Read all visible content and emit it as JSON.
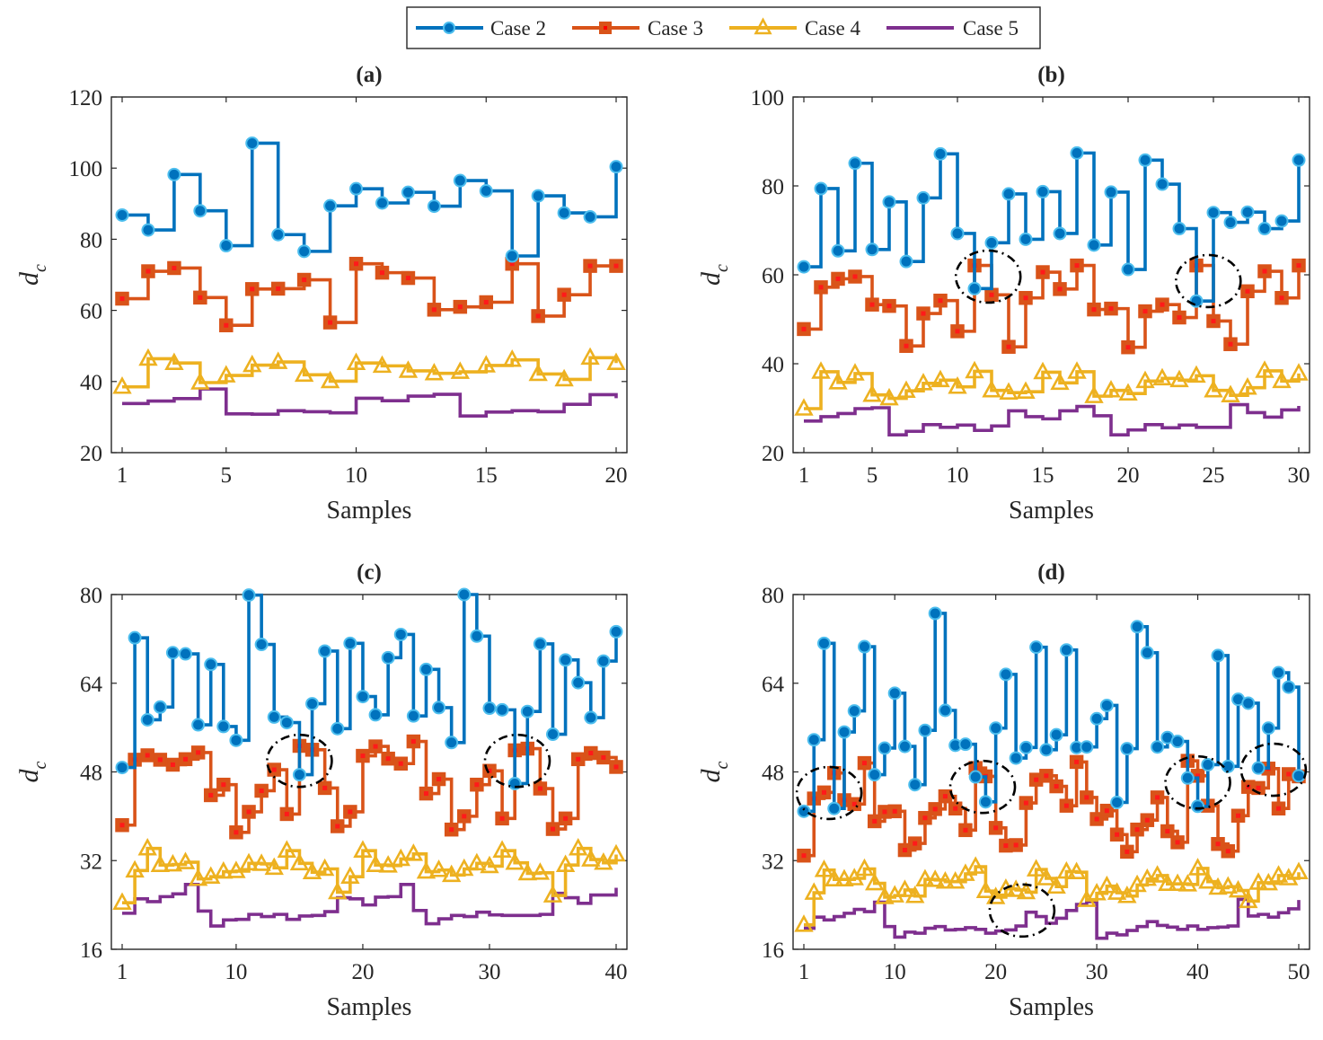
{
  "legend": [
    {
      "name": "Case 2",
      "color": "#0072BD",
      "marker": "circle"
    },
    {
      "name": "Case 3",
      "color": "#D95319",
      "marker": "square"
    },
    {
      "name": "Case 4",
      "color": "#EDB120",
      "marker": "triangle"
    },
    {
      "name": "Case 5",
      "color": "#7E2F8E",
      "marker": "none"
    }
  ],
  "chart_data": [
    {
      "type": "line",
      "title": "(a)",
      "xlabel": "Samples",
      "ylabel": "d",
      "ylabel_sub": "c",
      "xlim": [
        1,
        20
      ],
      "ylim": [
        20,
        120
      ],
      "xticks": [
        1,
        5,
        10,
        15,
        20
      ],
      "yticks": [
        20,
        40,
        60,
        80,
        100,
        120
      ],
      "series": [
        {
          "name": "Case 2",
          "values": [
            86.8,
            82.6,
            98.2,
            88.0,
            78.2,
            107.0,
            81.3,
            76.6,
            89.4,
            94.2,
            90.2,
            93.2,
            89.3,
            96.5,
            93.6,
            75.3,
            92.2,
            87.4,
            86.3,
            100.4
          ]
        },
        {
          "name": "Case 3",
          "values": [
            63.3,
            71.0,
            71.9,
            63.6,
            55.8,
            66.0,
            66.1,
            68.6,
            56.6,
            73.1,
            70.6,
            69.1,
            60.2,
            61.0,
            62.3,
            73.1,
            58.4,
            64.4,
            72.5,
            72.5
          ]
        },
        {
          "name": "Case 4",
          "values": [
            38.5,
            46.4,
            45.2,
            39.7,
            41.7,
            44.6,
            45.5,
            41.9,
            40.1,
            45.2,
            44.4,
            43.0,
            42.3,
            42.7,
            44.5,
            46.1,
            42.1,
            40.6,
            46.7,
            45.2
          ]
        },
        {
          "name": "Case 5",
          "values": [
            33.8,
            34.5,
            35.2,
            37.9,
            30.9,
            30.8,
            31.8,
            31.5,
            31.2,
            35.3,
            34.6,
            35.9,
            36.4,
            30.3,
            31.4,
            31.8,
            31.5,
            33.6,
            36.3,
            35.3
          ]
        }
      ],
      "annotations": []
    },
    {
      "type": "line",
      "title": "(b)",
      "xlabel": "Samples",
      "ylabel": "d",
      "ylabel_sub": "c",
      "xlim": [
        1,
        30
      ],
      "ylim": [
        20,
        100
      ],
      "xticks": [
        1,
        5,
        10,
        15,
        20,
        25,
        30
      ],
      "yticks": [
        20,
        40,
        60,
        80,
        100
      ],
      "series": [
        {
          "name": "Case 2",
          "values": [
            61.8,
            79.4,
            65.4,
            85.1,
            65.7,
            76.4,
            63.0,
            77.3,
            87.2,
            69.3,
            56.9,
            67.2,
            78.2,
            68.0,
            78.7,
            69.3,
            87.4,
            66.7,
            78.6,
            61.2,
            85.8,
            80.4,
            70.4,
            54.1,
            74.0,
            71.8,
            74.1,
            70.4,
            72.1,
            85.8
          ]
        },
        {
          "name": "Case 3",
          "values": [
            47.8,
            57.2,
            59.1,
            59.6,
            53.3,
            53.0,
            44.0,
            51.3,
            54.2,
            47.3,
            62.1,
            55.5,
            43.8,
            54.8,
            60.6,
            56.8,
            62.1,
            52.2,
            52.4,
            43.7,
            51.8,
            53.3,
            50.4,
            62.1,
            49.6,
            44.4,
            56.3,
            60.8,
            54.8,
            62.1
          ]
        },
        {
          "name": "Case 4",
          "values": [
            29.9,
            38.2,
            35.8,
            37.8,
            33.0,
            32.2,
            33.9,
            35.6,
            36.3,
            34.8,
            38.3,
            34.0,
            33.5,
            33.7,
            38.1,
            35.7,
            38.2,
            32.7,
            34.0,
            33.3,
            36.1,
            36.7,
            36.3,
            37.3,
            34.0,
            32.9,
            34.6,
            38.4,
            36.1,
            37.8
          ]
        },
        {
          "name": "Case 5",
          "values": [
            27.1,
            28.1,
            28.8,
            29.9,
            30.1,
            24.0,
            24.8,
            26.3,
            25.7,
            26.2,
            25.0,
            26.0,
            29.4,
            28.1,
            27.6,
            29.4,
            30.4,
            28.3,
            24.0,
            25.1,
            26.3,
            25.6,
            26.2,
            25.7,
            25.7,
            30.8,
            29.0,
            28.0,
            29.6,
            30.5
          ]
        }
      ],
      "annotations": [
        {
          "shape": "ellipse",
          "x": 11.8,
          "y": 59.6
        },
        {
          "shape": "ellipse",
          "x": 24.7,
          "y": 58.6
        }
      ]
    },
    {
      "type": "line",
      "title": "(c)",
      "xlabel": "Samples",
      "ylabel": "d",
      "ylabel_sub": "c",
      "xlim": [
        1,
        40
      ],
      "ylim": [
        16,
        80
      ],
      "xticks": [
        1,
        10,
        20,
        30,
        40
      ],
      "yticks": [
        16,
        32,
        48,
        64,
        80
      ],
      "series": [
        {
          "name": "Case 2",
          "values": [
            48.8,
            72.2,
            57.4,
            59.7,
            69.5,
            69.3,
            56.5,
            67.4,
            56.2,
            53.7,
            79.9,
            71.0,
            57.9,
            56.9,
            47.5,
            60.3,
            69.8,
            55.8,
            71.2,
            61.6,
            58.3,
            68.6,
            72.8,
            58.1,
            66.5,
            59.6,
            53.3,
            80.0,
            72.5,
            59.5,
            59.2,
            45.9,
            58.9,
            71.1,
            54.8,
            68.2,
            64.1,
            57.8,
            68.0,
            73.3
          ]
        },
        {
          "name": "Case 3",
          "values": [
            38.4,
            50.2,
            51.0,
            50.2,
            49.3,
            50.3,
            51.5,
            43.8,
            45.7,
            37.1,
            40.8,
            44.6,
            48.4,
            40.4,
            52.7,
            52.0,
            45.1,
            38.2,
            40.8,
            50.9,
            52.6,
            50.4,
            49.5,
            53.5,
            44.1,
            46.7,
            37.6,
            40.0,
            45.7,
            48.2,
            39.6,
            51.9,
            52.2,
            45.0,
            37.7,
            39.6,
            50.3,
            51.4,
            50.6,
            48.9
          ]
        },
        {
          "name": "Case 4",
          "values": [
            24.4,
            30.2,
            34.2,
            31.2,
            31.3,
            31.7,
            28.7,
            29.1,
            30.0,
            30.1,
            31.5,
            31.4,
            30.7,
            33.8,
            31.5,
            29.9,
            30.5,
            26.3,
            29.1,
            33.8,
            31.2,
            31.1,
            32.3,
            33.2,
            30.0,
            30.3,
            29.4,
            30.5,
            31.5,
            31.0,
            33.8,
            31.6,
            29.7,
            29.8,
            25.7,
            31.2,
            34.2,
            32.2,
            31.6,
            33.1
          ]
        },
        {
          "name": "Case 5",
          "values": [
            22.5,
            25.1,
            24.6,
            25.5,
            26.0,
            27.7,
            22.9,
            20.2,
            21.3,
            21.4,
            22.3,
            21.9,
            22.3,
            21.4,
            22.0,
            22.1,
            22.8,
            25.3,
            25.1,
            24.0,
            25.4,
            25.5,
            27.7,
            23.0,
            20.6,
            21.5,
            22.1,
            21.9,
            22.7,
            22.2,
            22.1,
            22.1,
            22.1,
            22.3,
            26.1,
            25.3,
            24.3,
            25.8,
            25.8,
            27.1
          ]
        }
      ],
      "annotations": [
        {
          "shape": "ellipse",
          "x": 15.0,
          "y": 50.0
        },
        {
          "shape": "ellipse",
          "x": 32.2,
          "y": 50.0
        }
      ]
    },
    {
      "type": "line",
      "title": "(d)",
      "xlabel": "Samples",
      "ylabel": "d",
      "ylabel_sub": "c",
      "xlim": [
        1,
        50
      ],
      "ylim": [
        16,
        80
      ],
      "xticks": [
        1,
        10,
        20,
        30,
        40,
        50
      ],
      "yticks": [
        16,
        32,
        48,
        64,
        80
      ],
      "series": [
        {
          "name": "Case 2",
          "values": [
            40.9,
            53.8,
            71.2,
            41.4,
            55.2,
            59.0,
            70.6,
            47.5,
            52.3,
            62.2,
            52.6,
            45.7,
            55.5,
            76.6,
            59.1,
            52.8,
            53.0,
            47.1,
            42.6,
            55.9,
            65.6,
            50.5,
            52.4,
            70.5,
            52.0,
            54.7,
            70.0,
            52.4,
            52.5,
            57.6,
            60.0,
            42.5,
            52.2,
            74.2,
            69.5,
            52.5,
            54.2,
            53.5,
            46.9,
            41.8,
            49.3,
            69.0,
            49.0,
            61.1,
            60.4,
            48.7,
            55.9,
            65.9,
            63.3,
            47.3
          ]
        },
        {
          "name": "Case 3",
          "values": [
            32.9,
            43.2,
            44.3,
            47.8,
            42.9,
            42.2,
            49.6,
            39.1,
            40.8,
            40.9,
            33.9,
            35.1,
            39.7,
            41.3,
            43.6,
            41.4,
            37.5,
            48.7,
            47.2,
            37.9,
            34.7,
            34.8,
            42.4,
            46.6,
            47.3,
            45.4,
            41.9,
            49.8,
            43.4,
            39.5,
            41.0,
            36.7,
            33.6,
            37.6,
            39.3,
            43.4,
            37.3,
            35.3,
            50.0,
            47.3,
            41.9,
            35.0,
            33.7,
            40.1,
            45.3,
            45.1,
            48.6,
            41.4,
            47.6,
            47.2
          ]
        },
        {
          "name": "Case 4",
          "values": [
            20.4,
            26.2,
            30.3,
            28.6,
            28.6,
            28.8,
            30.5,
            27.9,
            25.4,
            25.7,
            26.7,
            25.6,
            28.6,
            28.5,
            28.2,
            28.2,
            29.6,
            30.9,
            26.5,
            25.4,
            26.9,
            26.7,
            26.3,
            30.4,
            28.8,
            27.3,
            30.0,
            29.9,
            24.9,
            26.1,
            27.4,
            26.2,
            25.6,
            27.6,
            28.7,
            29.3,
            27.8,
            27.8,
            27.7,
            30.6,
            28.2,
            27.1,
            27.3,
            26.6,
            24.7,
            28.0,
            27.9,
            29.3,
            28.8,
            29.9
          ]
        },
        {
          "name": "Case 5",
          "values": [
            19.8,
            21.8,
            21.3,
            21.9,
            22.5,
            23.2,
            22.8,
            24.5,
            20.1,
            18.2,
            19.1,
            18.9,
            19.8,
            20.1,
            19.5,
            19.6,
            19.9,
            19.6,
            18.9,
            19.3,
            19.5,
            20.2,
            22.7,
            21.9,
            20.7,
            21.6,
            23.0,
            24.1,
            24.6,
            18.0,
            18.9,
            18.6,
            19.4,
            20.1,
            21.0,
            20.3,
            20.0,
            19.6,
            20.2,
            19.6,
            19.9,
            20.0,
            20.2,
            25.0,
            22.0,
            22.3,
            21.8,
            22.6,
            23.3,
            24.9
          ]
        }
      ],
      "annotations": [
        {
          "shape": "ellipse",
          "x": 3.5,
          "y": 44.2
        },
        {
          "shape": "ellipse",
          "x": 18.7,
          "y": 45.3
        },
        {
          "shape": "ellipse",
          "x": 40.0,
          "y": 46.1
        },
        {
          "shape": "ellipse",
          "x": 47.5,
          "y": 48.4
        },
        {
          "shape": "ellipse",
          "x": 22.6,
          "y": 23.0
        }
      ]
    }
  ]
}
